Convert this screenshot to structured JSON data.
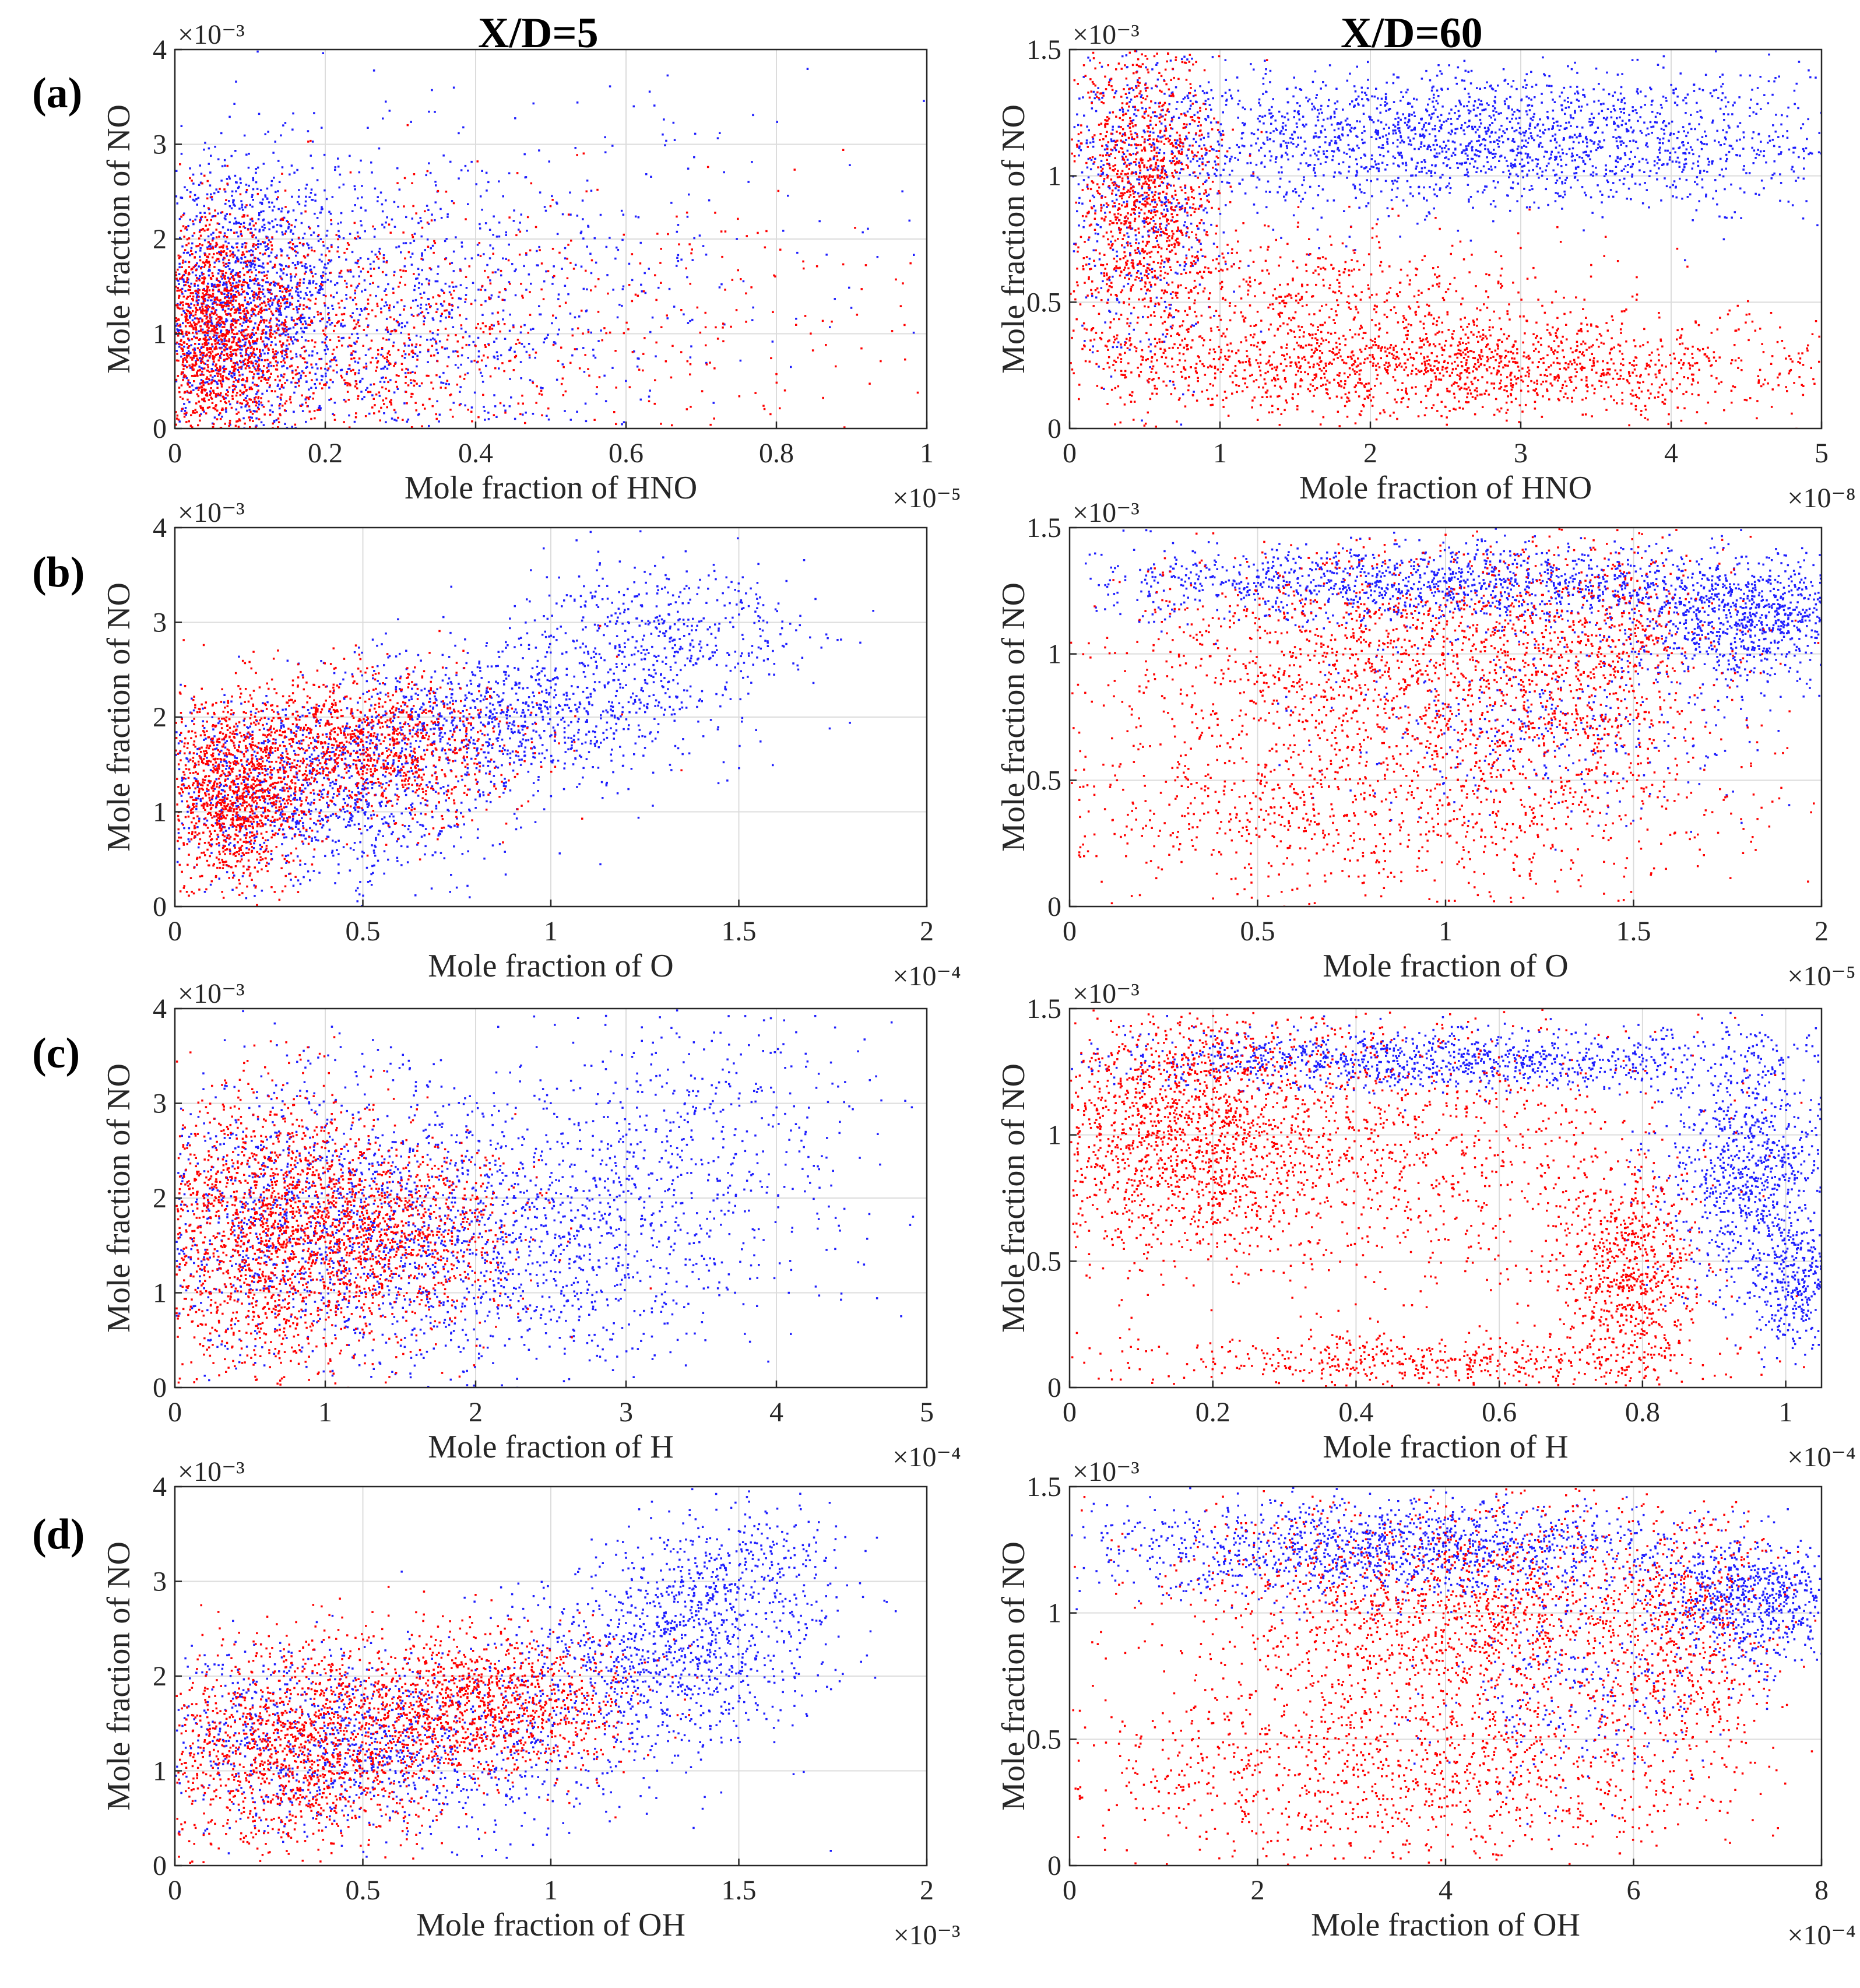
{
  "column_titles": [
    "X/D=5",
    "X/D=60"
  ],
  "row_labels": [
    "(a)",
    "(b)",
    "(c)",
    "(d)"
  ],
  "colors": {
    "series_blue": "#1f1fff",
    "series_red": "#ff0000",
    "grid": "#dcdcdc",
    "axis": "#262626"
  },
  "chart_data": [
    {
      "type": "scatter",
      "panel": "(a)",
      "column": "X/D=5",
      "xlabel": "Mole fraction of HNO",
      "ylabel": "Mole fraction of NO",
      "xlim": [
        0,
        1
      ],
      "ylim": [
        0,
        4
      ],
      "x_ticks": [
        0,
        0.2,
        0.4,
        0.6,
        0.8,
        1
      ],
      "x_tick_labels": [
        "0",
        "0.2",
        "0.4",
        "0.6",
        "0.8",
        "1"
      ],
      "y_ticks": [
        0,
        1,
        2,
        3,
        4
      ],
      "y_tick_labels": [
        "0",
        "1",
        "2",
        "3",
        "4"
      ],
      "x_exponent": "×10⁻⁵",
      "y_exponent": "×10⁻³",
      "series": [
        {
          "name": "blue",
          "color": "#1f1fff",
          "clusters": [
            {
              "cx": 0.08,
              "cy": 1.4,
              "sx": 0.07,
              "sy": 0.75,
              "n": 1300
            },
            {
              "cx": 0.25,
              "cy": 1.2,
              "sx": 0.15,
              "sy": 0.9,
              "n": 900
            },
            {
              "cx": 0.5,
              "cy": 1.6,
              "sx": 0.25,
              "sy": 1.0,
              "n": 350
            }
          ]
        },
        {
          "name": "red",
          "color": "#ff0000",
          "clusters": [
            {
              "cx": 0.05,
              "cy": 1.0,
              "sx": 0.05,
              "sy": 0.6,
              "n": 1500
            },
            {
              "cx": 0.2,
              "cy": 0.9,
              "sx": 0.15,
              "sy": 0.7,
              "n": 900
            },
            {
              "cx": 0.55,
              "cy": 1.1,
              "sx": 0.28,
              "sy": 0.8,
              "n": 350
            }
          ]
        }
      ]
    },
    {
      "type": "scatter",
      "panel": "(a)",
      "column": "X/D=60",
      "xlabel": "Mole fraction of HNO",
      "ylabel": "Mole fraction of NO",
      "xlim": [
        0,
        5
      ],
      "ylim": [
        0,
        1.5
      ],
      "x_ticks": [
        0,
        1,
        2,
        3,
        4,
        5
      ],
      "x_tick_labels": [
        "0",
        "1",
        "2",
        "3",
        "4",
        "5"
      ],
      "y_ticks": [
        0,
        0.5,
        1,
        1.5
      ],
      "y_tick_labels": [
        "0",
        "0.5",
        "1",
        "1.5"
      ],
      "x_exponent": "×10⁻⁸",
      "y_exponent": "×10⁻³",
      "series": [
        {
          "name": "blue",
          "color": "#1f1fff",
          "clusters": [
            {
              "cx": 2.8,
              "cy": 1.15,
              "sx": 1.3,
              "sy": 0.14,
              "n": 2200
            },
            {
              "cx": 0.5,
              "cy": 0.9,
              "sx": 0.3,
              "sy": 0.3,
              "n": 500
            }
          ]
        },
        {
          "name": "red",
          "color": "#ff0000",
          "clusters": [
            {
              "cx": 0.5,
              "cy": 0.95,
              "sx": 0.25,
              "sy": 0.3,
              "n": 1200
            },
            {
              "cx": 2.5,
              "cy": 0.25,
              "sx": 1.4,
              "sy": 0.1,
              "n": 1800
            },
            {
              "cx": 1.6,
              "cy": 0.55,
              "sx": 0.9,
              "sy": 0.12,
              "n": 500
            }
          ]
        }
      ]
    },
    {
      "type": "scatter",
      "panel": "(b)",
      "column": "X/D=5",
      "xlabel": "Mole fraction of O",
      "ylabel": "Mole fraction of NO",
      "xlim": [
        0,
        2
      ],
      "ylim": [
        0,
        4
      ],
      "x_ticks": [
        0,
        0.5,
        1,
        1.5,
        2
      ],
      "x_tick_labels": [
        "0",
        "0.5",
        "1",
        "1.5",
        "2"
      ],
      "y_ticks": [
        0,
        1,
        2,
        3,
        4
      ],
      "y_tick_labels": [
        "0",
        "1",
        "2",
        "3",
        "4"
      ],
      "x_exponent": "×10⁻⁴",
      "y_exponent": "×10⁻³",
      "series": [
        {
          "name": "blue",
          "color": "#1f1fff",
          "clusters": [
            {
              "cx": 0.35,
              "cy": 1.2,
              "sx": 0.25,
              "sy": 0.5,
              "n": 1200
            },
            {
              "cx": 0.9,
              "cy": 2.0,
              "sx": 0.25,
              "sy": 0.35,
              "n": 900
            },
            {
              "cx": 1.3,
              "cy": 2.9,
              "sx": 0.2,
              "sy": 0.35,
              "n": 500
            }
          ]
        },
        {
          "name": "red",
          "color": "#ff0000",
          "clusters": [
            {
              "cx": 0.15,
              "cy": 1.2,
              "sx": 0.1,
              "sy": 0.5,
              "n": 1200
            },
            {
              "cx": 0.5,
              "cy": 1.7,
              "sx": 0.2,
              "sy": 0.4,
              "n": 1200
            }
          ]
        }
      ]
    },
    {
      "type": "scatter",
      "panel": "(b)",
      "column": "X/D=60",
      "xlabel": "Mole fraction of O",
      "ylabel": "Mole fraction of NO",
      "xlim": [
        0,
        2
      ],
      "ylim": [
        0,
        1.5
      ],
      "x_ticks": [
        0,
        0.5,
        1,
        1.5,
        2
      ],
      "x_tick_labels": [
        "0",
        "0.5",
        "1",
        "1.5",
        "2"
      ],
      "y_ticks": [
        0,
        0.5,
        1,
        1.5
      ],
      "y_tick_labels": [
        "0",
        "0.5",
        "1",
        "1.5"
      ],
      "x_exponent": "×10⁻⁵",
      "y_exponent": "×10⁻³",
      "series": [
        {
          "name": "blue",
          "color": "#1f1fff",
          "clusters": [
            {
              "cx": 1.0,
              "cy": 1.28,
              "sx": 0.5,
              "sy": 0.08,
              "n": 1400
            },
            {
              "cx": 1.8,
              "cy": 1.12,
              "sx": 0.15,
              "sy": 0.12,
              "n": 800
            },
            {
              "cx": 1.3,
              "cy": 0.75,
              "sx": 0.3,
              "sy": 0.2,
              "n": 400
            }
          ]
        },
        {
          "name": "red",
          "color": "#ff0000",
          "clusters": [
            {
              "cx": 0.9,
              "cy": 1.0,
              "sx": 0.4,
              "sy": 0.22,
              "n": 1500
            },
            {
              "cx": 0.8,
              "cy": 0.4,
              "sx": 0.5,
              "sy": 0.2,
              "n": 1100
            },
            {
              "cx": 1.4,
              "cy": 1.0,
              "sx": 0.15,
              "sy": 0.3,
              "n": 500
            }
          ]
        }
      ]
    },
    {
      "type": "scatter",
      "panel": "(c)",
      "column": "X/D=5",
      "xlabel": "Mole fraction of H",
      "ylabel": "Mole fraction of NO",
      "xlim": [
        0,
        5
      ],
      "ylim": [
        0,
        4
      ],
      "x_ticks": [
        0,
        1,
        2,
        3,
        4,
        5
      ],
      "x_tick_labels": [
        "0",
        "1",
        "2",
        "3",
        "4",
        "5"
      ],
      "y_ticks": [
        0,
        1,
        2,
        3,
        4
      ],
      "y_tick_labels": [
        "0",
        "1",
        "2",
        "3",
        "4"
      ],
      "x_exponent": "×10⁻⁴",
      "y_exponent": "×10⁻³",
      "series": [
        {
          "name": "blue",
          "color": "#1f1fff",
          "clusters": [
            {
              "cx": 1.0,
              "cy": 1.8,
              "sx": 0.7,
              "sy": 0.8,
              "n": 1400
            },
            {
              "cx": 2.5,
              "cy": 1.5,
              "sx": 0.7,
              "sy": 0.7,
              "n": 1000
            },
            {
              "cx": 3.6,
              "cy": 2.7,
              "sx": 0.6,
              "sy": 0.6,
              "n": 350
            }
          ]
        },
        {
          "name": "red",
          "color": "#ff0000",
          "clusters": [
            {
              "cx": 0.6,
              "cy": 1.6,
              "sx": 0.45,
              "sy": 0.8,
              "n": 1800
            },
            {
              "cx": 1.5,
              "cy": 1.7,
              "sx": 0.4,
              "sy": 0.5,
              "n": 800
            }
          ]
        }
      ]
    },
    {
      "type": "scatter",
      "panel": "(c)",
      "column": "X/D=60",
      "xlabel": "Mole fraction of H",
      "ylabel": "Mole fraction of NO",
      "xlim": [
        0,
        1.05
      ],
      "ylim": [
        0,
        1.5
      ],
      "x_ticks": [
        0,
        0.2,
        0.4,
        0.6,
        0.8,
        1
      ],
      "x_tick_labels": [
        "0",
        "0.2",
        "0.4",
        "0.6",
        "0.8",
        "1"
      ],
      "y_ticks": [
        0,
        0.5,
        1,
        1.5
      ],
      "y_tick_labels": [
        "0",
        "0.5",
        "1",
        "1.5"
      ],
      "x_exponent": "×10⁻⁴",
      "y_exponent": "×10⁻³",
      "series": [
        {
          "name": "blue",
          "color": "#1f1fff",
          "clusters": [
            {
              "cx": 0.5,
              "cy": 1.3,
              "sx": 0.25,
              "sy": 0.06,
              "n": 1100
            },
            {
              "cx": 0.95,
              "cy": 0.85,
              "sx": 0.06,
              "sy": 0.25,
              "n": 900
            },
            {
              "cx": 1.02,
              "cy": 0.4,
              "sx": 0.03,
              "sy": 0.12,
              "n": 300
            }
          ]
        },
        {
          "name": "red",
          "color": "#ff0000",
          "clusters": [
            {
              "cx": 0.15,
              "cy": 1.05,
              "sx": 0.1,
              "sy": 0.25,
              "n": 1500
            },
            {
              "cx": 0.45,
              "cy": 0.95,
              "sx": 0.2,
              "sy": 0.3,
              "n": 1100
            },
            {
              "cx": 0.78,
              "cy": 0.45,
              "sx": 0.05,
              "sy": 0.2,
              "n": 700
            },
            {
              "cx": 0.5,
              "cy": 0.1,
              "sx": 0.2,
              "sy": 0.05,
              "n": 500
            }
          ]
        }
      ]
    },
    {
      "type": "scatter",
      "panel": "(d)",
      "column": "X/D=5",
      "xlabel": "Mole fraction of OH",
      "ylabel": "Mole fraction of NO",
      "xlim": [
        0,
        2
      ],
      "ylim": [
        0,
        4
      ],
      "x_ticks": [
        0,
        0.5,
        1,
        1.5,
        2
      ],
      "x_tick_labels": [
        "0",
        "0.5",
        "1",
        "1.5",
        "2"
      ],
      "y_ticks": [
        0,
        1,
        2,
        3,
        4
      ],
      "y_tick_labels": [
        "0",
        "1",
        "2",
        "3",
        "4"
      ],
      "x_exponent": "×10⁻³",
      "y_exponent": "×10⁻³",
      "series": [
        {
          "name": "blue",
          "color": "#1f1fff",
          "clusters": [
            {
              "cx": 0.5,
              "cy": 1.3,
              "sx": 0.35,
              "sy": 0.5,
              "n": 1300
            },
            {
              "cx": 1.3,
              "cy": 2.2,
              "sx": 0.2,
              "sy": 0.5,
              "n": 900
            },
            {
              "cx": 1.5,
              "cy": 3.1,
              "sx": 0.15,
              "sy": 0.4,
              "n": 350
            }
          ]
        },
        {
          "name": "red",
          "color": "#ff0000",
          "clusters": [
            {
              "cx": 0.3,
              "cy": 1.2,
              "sx": 0.2,
              "sy": 0.55,
              "n": 1400
            },
            {
              "cx": 0.8,
              "cy": 1.7,
              "sx": 0.2,
              "sy": 0.4,
              "n": 1200
            }
          ]
        }
      ]
    },
    {
      "type": "scatter",
      "panel": "(d)",
      "column": "X/D=60",
      "xlabel": "Mole fraction of OH",
      "ylabel": "Mole fraction of NO",
      "xlim": [
        0,
        8
      ],
      "ylim": [
        0,
        1.5
      ],
      "x_ticks": [
        0,
        2,
        4,
        6,
        8
      ],
      "x_tick_labels": [
        "0",
        "2",
        "4",
        "6",
        "8"
      ],
      "y_ticks": [
        0,
        0.5,
        1,
        1.5
      ],
      "y_tick_labels": [
        "0",
        "0.5",
        "1",
        "1.5"
      ],
      "x_exponent": "×10⁻⁴",
      "y_exponent": "×10⁻³",
      "series": [
        {
          "name": "blue",
          "color": "#1f1fff",
          "clusters": [
            {
              "cx": 3.5,
              "cy": 1.25,
              "sx": 1.6,
              "sy": 0.1,
              "n": 1400
            },
            {
              "cx": 7.2,
              "cy": 1.05,
              "sx": 0.5,
              "sy": 0.12,
              "n": 700
            },
            {
              "cx": 5.5,
              "cy": 0.7,
              "sx": 0.8,
              "sy": 0.2,
              "n": 300
            }
          ]
        },
        {
          "name": "red",
          "color": "#ff0000",
          "clusters": [
            {
              "cx": 4.0,
              "cy": 1.0,
              "sx": 1.5,
              "sy": 0.22,
              "n": 1600
            },
            {
              "cx": 3.5,
              "cy": 0.35,
              "sx": 1.8,
              "sy": 0.18,
              "n": 1100
            },
            {
              "cx": 6.5,
              "cy": 0.9,
              "sx": 0.5,
              "sy": 0.25,
              "n": 500
            }
          ]
        }
      ]
    }
  ]
}
